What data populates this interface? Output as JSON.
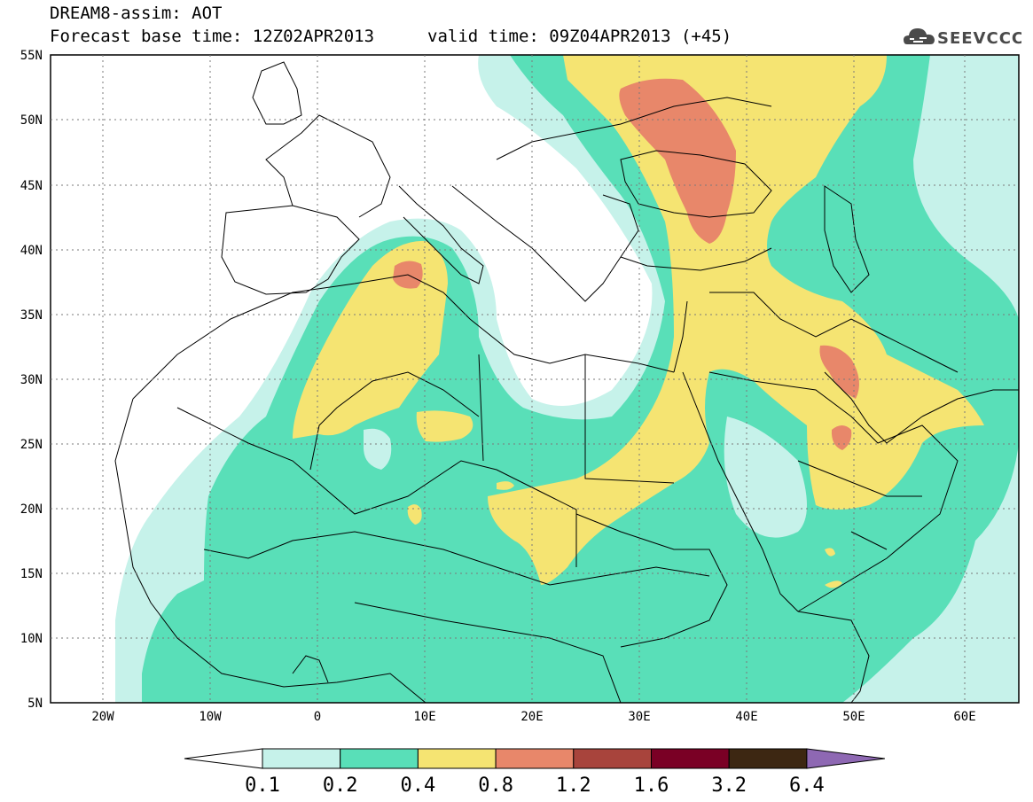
{
  "header": {
    "title": "DREAM8-assim: AOT",
    "base_time": "Forecast base time: 12Z02APR2013",
    "valid_time": "valid time: 09Z04APR2013 (+45)"
  },
  "logo": {
    "text": "SEEVCCC",
    "icon": "cloud-icon"
  },
  "axes": {
    "lat_labels": [
      "55N",
      "50N",
      "45N",
      "40N",
      "35N",
      "30N",
      "25N",
      "20N",
      "15N",
      "10N",
      "5N"
    ],
    "lon_labels": [
      "20W",
      "10W",
      "0",
      "10E",
      "20E",
      "30E",
      "40E",
      "50E",
      "60E"
    ]
  },
  "colorbar": {
    "labels": [
      "0.1",
      "0.2",
      "0.4",
      "0.8",
      "1.2",
      "1.6",
      "3.2",
      "6.4"
    ],
    "colors": [
      "#ffffff",
      "#c6f2ea",
      "#59dfb8",
      "#f5e472",
      "#e8876a",
      "#a8443c",
      "#7a0025",
      "#3d2712",
      "#8e68b3"
    ]
  },
  "map_colors": {
    "ocean": "#ffffff",
    "level_0_1": "#c6f2ea",
    "level_0_2": "#59dfb8",
    "level_0_4": "#f5e472",
    "level_0_8": "#e8876a"
  }
}
